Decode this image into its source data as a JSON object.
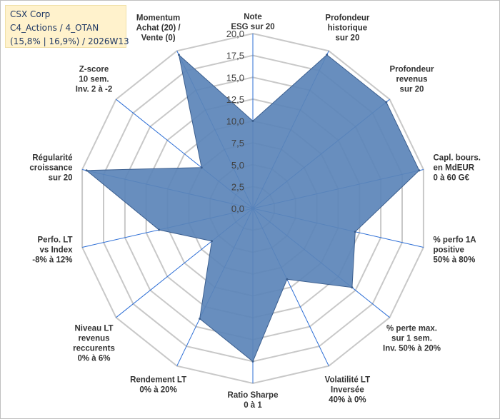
{
  "title_box": {
    "line1": "CSX Corp",
    "line2": "C4_Actions / 4_OTAN",
    "line3": "(15,8% | 16,9%) / 2026W13"
  },
  "chart_data": {
    "type": "radar",
    "title": "CSX Corp",
    "rlim": [
      0,
      20
    ],
    "tick_step": 2.5,
    "tick_labels": [
      "0,0",
      "2,5",
      "5,0",
      "7,5",
      "10,0",
      "12,5",
      "15,0",
      "17,5",
      "20,0"
    ],
    "grid": true,
    "fill_color": "#5b84b9",
    "stroke_color": "#3c5f8f",
    "grid_color": "#c8c8c8",
    "axis_color": "#2e6fd6",
    "axes": [
      {
        "label": [
          "Note",
          "ESG sur 20"
        ],
        "value": 10.0
      },
      {
        "label": [
          "Profondeur",
          "historique",
          "sur 20"
        ],
        "value": 19.5
      },
      {
        "label": [
          "Profondeur",
          "revenus",
          "sur 20"
        ],
        "value": 19.5
      },
      {
        "label": [
          "Capl. bours.",
          "en MdEUR",
          "0 à 60 G€"
        ],
        "value": 19.5
      },
      {
        "label": [
          "% perfo 1A",
          "positive",
          "50% à 80%"
        ],
        "value": 12.0
      },
      {
        "label": [
          "% perte max.",
          "sur 1 sem.",
          "Inv. 50% à 20%"
        ],
        "value": 14.5
      },
      {
        "label": [
          "Volatilité LT",
          "Inversée",
          "40% à 0%"
        ],
        "value": 9.0
      },
      {
        "label": [
          "Ratio Sharpe",
          "0 à 1"
        ],
        "value": 17.5
      },
      {
        "label": [
          "Rendement LT",
          "0% à 20%"
        ],
        "value": 14.0
      },
      {
        "label": [
          "Niveau LT",
          "revenus",
          "reccurents",
          "0% à 6%"
        ],
        "value": 6.0
      },
      {
        "label": [
          "Perfo. LT",
          "vs Index",
          "-8% à 12%"
        ],
        "value": 11.0
      },
      {
        "label": [
          "Régularité",
          "croissance",
          "sur 20"
        ],
        "value": 19.5
      },
      {
        "label": [
          "Z-score",
          "10 sem.",
          "Inv. 2 à -2"
        ],
        "value": 7.5
      },
      {
        "label": [
          "Momentum",
          "Achat (20) /",
          "Vente (0)"
        ],
        "value": 19.5
      }
    ]
  }
}
